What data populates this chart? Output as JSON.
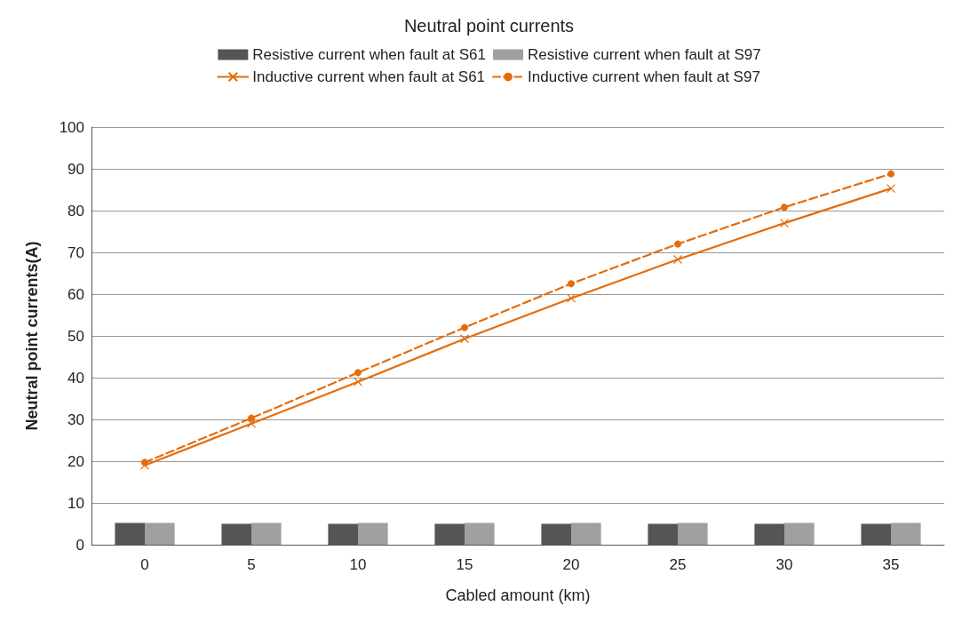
{
  "chart_data": {
    "type": "bar",
    "title": "Neutral point currents",
    "xlabel": "Cabled amount (km)",
    "ylabel": "Neutral point currents(A)",
    "categories": [
      "0",
      "5",
      "10",
      "15",
      "20",
      "25",
      "30",
      "35"
    ],
    "series": [
      {
        "name": "Resistive current when fault at S61",
        "color": "#555555",
        "values": [
          5.2,
          5.0,
          5.0,
          5.0,
          5.0,
          5.0,
          5.0,
          5.0
        ]
      },
      {
        "name": "Resistive current when fault at S97",
        "color": "#a0a0a0",
        "values": [
          5.2,
          5.2,
          5.2,
          5.2,
          5.2,
          5.2,
          5.2,
          5.2
        ]
      },
      {
        "name": "Inductive current when fault at S61",
        "type": "line",
        "color": "#e46c0a",
        "marker": "cross",
        "line_style": "solid",
        "values": [
          19,
          29,
          39,
          49.3,
          59,
          68.3,
          77,
          85.3
        ]
      },
      {
        "name": "Inductive current when fault at S97",
        "type": "line",
        "color": "#e46c0a",
        "marker": "circle",
        "line_style": "dashed",
        "values": [
          19.7,
          30.3,
          41.2,
          52,
          62.5,
          72,
          80.8,
          88.8
        ]
      }
    ],
    "ylim": [
      0,
      100
    ],
    "yticks": [
      0,
      10,
      20,
      30,
      40,
      50,
      60,
      70,
      80,
      90,
      100
    ],
    "grid": "y",
    "legend": "top"
  }
}
